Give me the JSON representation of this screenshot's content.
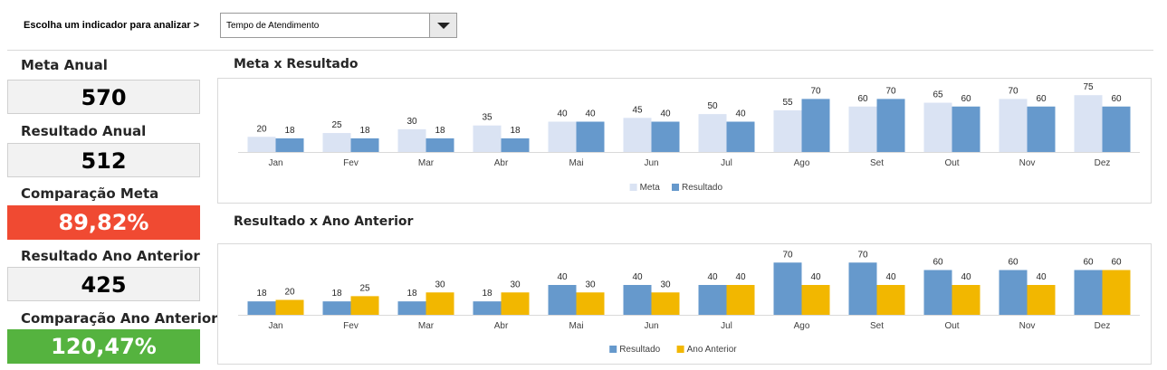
{
  "header": {
    "prompt": "Escolha um indicador para analizar >",
    "indicator_value": "Tempo de Atendimento",
    "dropdown_icon": "triangle-down"
  },
  "kpis": {
    "meta_anual": {
      "label": "Meta Anual",
      "value": "570"
    },
    "resultado_anual": {
      "label": "Resultado Anual",
      "value": "512"
    },
    "comparacao_meta": {
      "label": "Comparação Meta",
      "value": "89,82%",
      "color": "#f04a32"
    },
    "resultado_ano_anterior": {
      "label": "Resultado Ano Anterior",
      "value": "425"
    },
    "comparacao_ano_anterior": {
      "label": "Comparação Ano Anterior",
      "value": "120,47%",
      "color": "#55b33f"
    }
  },
  "chart_data": [
    {
      "type": "bar",
      "title": "Meta x Resultado",
      "categories": [
        "Jan",
        "Fev",
        "Mar",
        "Abr",
        "Mai",
        "Jun",
        "Jul",
        "Ago",
        "Set",
        "Out",
        "Nov",
        "Dez"
      ],
      "series": [
        {
          "name": "Meta",
          "values": [
            20,
            25,
            30,
            35,
            40,
            45,
            50,
            55,
            60,
            65,
            70,
            75
          ],
          "color": "#dae3f3"
        },
        {
          "name": "Resultado",
          "values": [
            18,
            18,
            18,
            18,
            40,
            40,
            40,
            70,
            70,
            60,
            60,
            60
          ],
          "color": "#6699cc"
        }
      ],
      "ylim": [
        0,
        80
      ],
      "grid": false,
      "legend": "bottom",
      "data_labels": true
    },
    {
      "type": "bar",
      "title": "Resultado x Ano Anterior",
      "categories": [
        "Jan",
        "Fev",
        "Mar",
        "Abr",
        "Mai",
        "Jun",
        "Jul",
        "Ago",
        "Set",
        "Out",
        "Nov",
        "Dez"
      ],
      "series": [
        {
          "name": "Resultado",
          "values": [
            18,
            18,
            18,
            18,
            40,
            40,
            40,
            70,
            70,
            60,
            60,
            60
          ],
          "color": "#6699cc"
        },
        {
          "name": "Ano Anterior",
          "values": [
            20,
            25,
            30,
            30,
            30,
            30,
            40,
            40,
            40,
            40,
            40,
            60
          ],
          "color": "#f2b700"
        }
      ],
      "ylim": [
        0,
        80
      ],
      "grid": false,
      "legend": "bottom",
      "data_labels": true
    }
  ]
}
